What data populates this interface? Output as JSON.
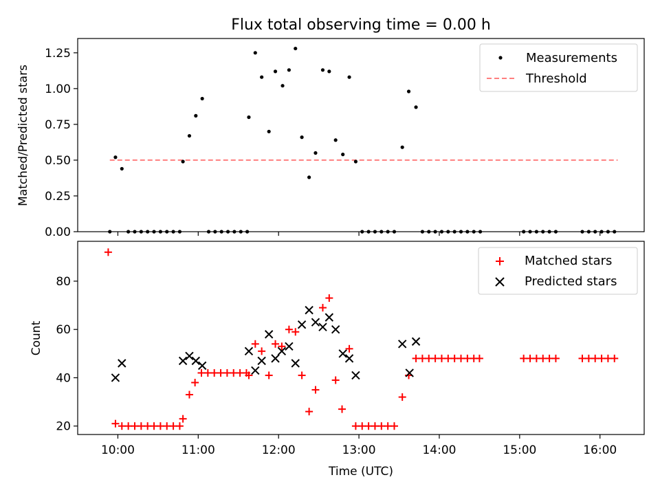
{
  "chart_data": [
    {
      "type": "scatter",
      "title": "Flux total observing time = 0.00 h",
      "xlabel": "",
      "ylabel": "Matched/Predicted stars",
      "ylim": [
        0,
        1.35
      ],
      "yticks": [
        0.0,
        0.25,
        0.5,
        0.75,
        1.0,
        1.25
      ],
      "ytick_labels": [
        "0.00",
        "0.25",
        "0.50",
        "0.75",
        "1.00",
        "1.25"
      ],
      "legend_position": "top-right",
      "series": [
        {
          "name": "Measurements",
          "kind": "dot",
          "color": "#000000",
          "points": [
            [
              9.9,
              0
            ],
            [
              9.97,
              0.52
            ],
            [
              10.05,
              0.44
            ],
            [
              10.13,
              0
            ],
            [
              10.21,
              0
            ],
            [
              10.29,
              0
            ],
            [
              10.37,
              0
            ],
            [
              10.45,
              0
            ],
            [
              10.53,
              0
            ],
            [
              10.61,
              0
            ],
            [
              10.69,
              0
            ],
            [
              10.77,
              0
            ],
            [
              10.81,
              0.49
            ],
            [
              10.89,
              0.67
            ],
            [
              10.97,
              0.81
            ],
            [
              11.05,
              0.93
            ],
            [
              11.13,
              0
            ],
            [
              11.21,
              0
            ],
            [
              11.29,
              0
            ],
            [
              11.37,
              0
            ],
            [
              11.45,
              0
            ],
            [
              11.53,
              0
            ],
            [
              11.61,
              0
            ],
            [
              11.63,
              0.8
            ],
            [
              11.71,
              1.25
            ],
            [
              11.79,
              1.08
            ],
            [
              11.88,
              0.7
            ],
            [
              11.96,
              1.12
            ],
            [
              12.05,
              1.02
            ],
            [
              12.13,
              1.13
            ],
            [
              12.21,
              1.28
            ],
            [
              12.29,
              0.66
            ],
            [
              12.38,
              0.38
            ],
            [
              12.46,
              0.55
            ],
            [
              12.55,
              1.13
            ],
            [
              12.63,
              1.12
            ],
            [
              12.71,
              0.64
            ],
            [
              12.8,
              0.54
            ],
            [
              12.88,
              1.08
            ],
            [
              12.96,
              0.49
            ],
            [
              13.04,
              0
            ],
            [
              13.12,
              0
            ],
            [
              13.2,
              0
            ],
            [
              13.28,
              0
            ],
            [
              13.36,
              0
            ],
            [
              13.44,
              0
            ],
            [
              13.54,
              0.59
            ],
            [
              13.62,
              0.98
            ],
            [
              13.71,
              0.87
            ],
            [
              13.79,
              0
            ],
            [
              13.87,
              0
            ],
            [
              13.95,
              0
            ],
            [
              14.03,
              0
            ],
            [
              14.11,
              0
            ],
            [
              14.19,
              0
            ],
            [
              14.27,
              0
            ],
            [
              14.35,
              0
            ],
            [
              14.43,
              0
            ],
            [
              14.51,
              0
            ],
            [
              15.05,
              0
            ],
            [
              15.13,
              0
            ],
            [
              15.21,
              0
            ],
            [
              15.29,
              0
            ],
            [
              15.37,
              0
            ],
            [
              15.45,
              0
            ],
            [
              15.78,
              0
            ],
            [
              15.86,
              0
            ],
            [
              15.94,
              0
            ],
            [
              16.02,
              0
            ],
            [
              16.1,
              0
            ],
            [
              16.18,
              0
            ]
          ]
        },
        {
          "name": "Threshold",
          "kind": "dashed-line",
          "color": "#ff7f7f",
          "points": [
            [
              9.9,
              0.5
            ],
            [
              16.22,
              0.5
            ]
          ]
        }
      ]
    },
    {
      "type": "scatter",
      "title": "",
      "xlabel": "Time (UTC)",
      "ylabel": "Count",
      "ylim": [
        16.5,
        96.5
      ],
      "yticks": [
        20,
        40,
        60,
        80
      ],
      "ytick_labels": [
        "20",
        "40",
        "60",
        "80"
      ],
      "xlim": [
        9.5,
        16.55
      ],
      "xticks": [
        10,
        11,
        12,
        13,
        14,
        15,
        16
      ],
      "xtick_labels": [
        "10:00",
        "11:00",
        "12:00",
        "13:00",
        "14:00",
        "15:00",
        "16:00"
      ],
      "legend_position": "top-right",
      "series": [
        {
          "name": "Matched stars",
          "kind": "plus",
          "color": "#ff0000",
          "points": [
            [
              9.88,
              92
            ],
            [
              9.97,
              21
            ],
            [
              10.05,
              20
            ],
            [
              10.13,
              20
            ],
            [
              10.21,
              20
            ],
            [
              10.29,
              20
            ],
            [
              10.37,
              20
            ],
            [
              10.45,
              20
            ],
            [
              10.53,
              20
            ],
            [
              10.61,
              20
            ],
            [
              10.69,
              20
            ],
            [
              10.77,
              20
            ],
            [
              10.81,
              23
            ],
            [
              10.89,
              33
            ],
            [
              10.96,
              38
            ],
            [
              11.04,
              42
            ],
            [
              11.12,
              42
            ],
            [
              11.2,
              42
            ],
            [
              11.28,
              42
            ],
            [
              11.36,
              42
            ],
            [
              11.44,
              42
            ],
            [
              11.52,
              42
            ],
            [
              11.6,
              42
            ],
            [
              11.63,
              41
            ],
            [
              11.71,
              54
            ],
            [
              11.79,
              51
            ],
            [
              11.88,
              41
            ],
            [
              11.96,
              54
            ],
            [
              12.04,
              53
            ],
            [
              12.13,
              60
            ],
            [
              12.21,
              59
            ],
            [
              12.29,
              41
            ],
            [
              12.38,
              26
            ],
            [
              12.46,
              35
            ],
            [
              12.55,
              69
            ],
            [
              12.63,
              73
            ],
            [
              12.71,
              39
            ],
            [
              12.79,
              27
            ],
            [
              12.88,
              52
            ],
            [
              12.96,
              20
            ],
            [
              13.04,
              20
            ],
            [
              13.12,
              20
            ],
            [
              13.2,
              20
            ],
            [
              13.28,
              20
            ],
            [
              13.36,
              20
            ],
            [
              13.44,
              20
            ],
            [
              13.54,
              32
            ],
            [
              13.62,
              41
            ],
            [
              13.71,
              48
            ],
            [
              13.79,
              48
            ],
            [
              13.87,
              48
            ],
            [
              13.95,
              48
            ],
            [
              14.03,
              48
            ],
            [
              14.11,
              48
            ],
            [
              14.19,
              48
            ],
            [
              14.27,
              48
            ],
            [
              14.35,
              48
            ],
            [
              14.43,
              48
            ],
            [
              14.5,
              48
            ],
            [
              15.05,
              48
            ],
            [
              15.13,
              48
            ],
            [
              15.21,
              48
            ],
            [
              15.29,
              48
            ],
            [
              15.37,
              48
            ],
            [
              15.45,
              48
            ],
            [
              15.78,
              48
            ],
            [
              15.86,
              48
            ],
            [
              15.94,
              48
            ],
            [
              16.02,
              48
            ],
            [
              16.1,
              48
            ],
            [
              16.18,
              48
            ]
          ]
        },
        {
          "name": "Predicted stars",
          "kind": "x",
          "color": "#000000",
          "points": [
            [
              9.97,
              40
            ],
            [
              10.05,
              46
            ],
            [
              10.81,
              47
            ],
            [
              10.89,
              49
            ],
            [
              10.97,
              47
            ],
            [
              11.05,
              45
            ],
            [
              11.63,
              51
            ],
            [
              11.71,
              43
            ],
            [
              11.79,
              47
            ],
            [
              11.88,
              58
            ],
            [
              11.96,
              48
            ],
            [
              12.04,
              51
            ],
            [
              12.13,
              53
            ],
            [
              12.21,
              46
            ],
            [
              12.29,
              62
            ],
            [
              12.38,
              68
            ],
            [
              12.46,
              63
            ],
            [
              12.55,
              61
            ],
            [
              12.63,
              65
            ],
            [
              12.71,
              60
            ],
            [
              12.8,
              50
            ],
            [
              12.88,
              48
            ],
            [
              12.96,
              41
            ],
            [
              13.54,
              54
            ],
            [
              13.63,
              42
            ],
            [
              13.71,
              55
            ]
          ]
        }
      ]
    }
  ]
}
